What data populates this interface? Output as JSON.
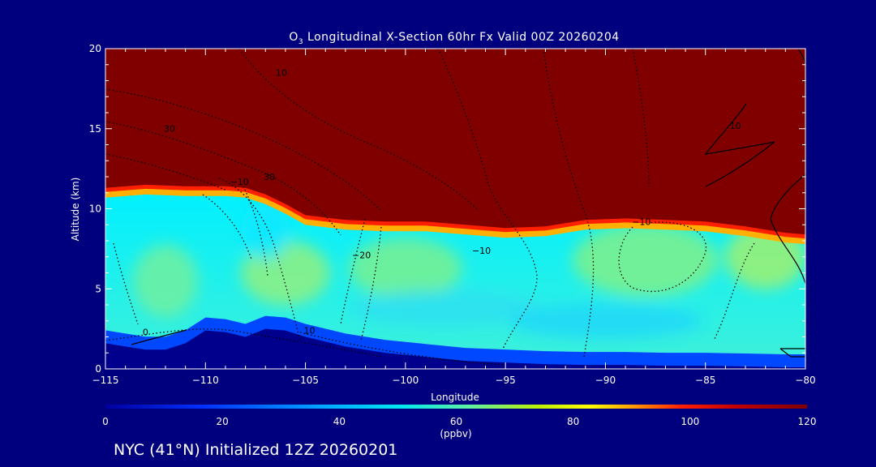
{
  "chart_data": {
    "type": "heatmap",
    "title_prefix": "O",
    "title_sub": "3",
    "title_rest": " Longitudinal X-Section 60hr  Fx Valid 00Z 20260204",
    "xlabel": "Longitude",
    "ylabel": "Altitude (km)",
    "xlim": [
      -115,
      -80
    ],
    "ylim": [
      0,
      20
    ],
    "xticks": [
      -115,
      -110,
      -105,
      -100,
      -95,
      -90,
      -85,
      -80
    ],
    "xtick_labels": [
      "−115",
      "−110",
      "−105",
      "−100",
      "−95",
      "−90",
      "−85",
      "−80"
    ],
    "yticks": [
      0,
      5,
      10,
      15,
      20
    ],
    "ytick_labels": [
      "0",
      "5",
      "10",
      "15",
      "20"
    ],
    "colorbar": {
      "range": [
        0,
        120
      ],
      "ticks": [
        0,
        20,
        40,
        60,
        80,
        100,
        120
      ],
      "tick_labels": [
        "0",
        "20",
        "40",
        "60",
        "80",
        "100",
        "120"
      ],
      "unit": "(ppbv)"
    },
    "tropopause_km": [
      [
        -115,
        11.3
      ],
      [
        -113,
        11.5
      ],
      [
        -111,
        11.4
      ],
      [
        -109,
        11.4
      ],
      [
        -108,
        11.3
      ],
      [
        -107,
        10.9
      ],
      [
        -106,
        10.3
      ],
      [
        -105,
        9.6
      ],
      [
        -103,
        9.3
      ],
      [
        -101,
        9.2
      ],
      [
        -99,
        9.2
      ],
      [
        -97,
        9.0
      ],
      [
        -95,
        8.8
      ],
      [
        -93,
        8.9
      ],
      [
        -91,
        9.3
      ],
      [
        -89,
        9.4
      ],
      [
        -87,
        9.3
      ],
      [
        -85,
        9.2
      ],
      [
        -83,
        8.9
      ],
      [
        -81,
        8.5
      ],
      [
        -80,
        8.4
      ]
    ],
    "terrain_km": [
      [
        -115,
        1.6
      ],
      [
        -114,
        1.4
      ],
      [
        -113,
        1.2
      ],
      [
        -112,
        1.2
      ],
      [
        -111,
        1.6
      ],
      [
        -110,
        2.4
      ],
      [
        -109,
        2.3
      ],
      [
        -108,
        2.0
      ],
      [
        -107,
        2.5
      ],
      [
        -106,
        2.4
      ],
      [
        -105,
        2.0
      ],
      [
        -103,
        1.4
      ],
      [
        -101,
        1.0
      ],
      [
        -99,
        0.75
      ],
      [
        -97,
        0.5
      ],
      [
        -95,
        0.4
      ],
      [
        -93,
        0.3
      ],
      [
        -91,
        0.25
      ],
      [
        -89,
        0.25
      ],
      [
        -87,
        0.2
      ],
      [
        -85,
        0.2
      ],
      [
        -83,
        0.15
      ],
      [
        -81,
        0.1
      ],
      [
        -80,
        0.1
      ]
    ],
    "contour_labels": [
      {
        "text": "10",
        "lon": -106.2,
        "alt": 18.3
      },
      {
        "text": "30",
        "lon": -111.8,
        "alt": 14.8
      },
      {
        "text": "10",
        "lon": -83.5,
        "alt": 15.0
      },
      {
        "text": "30",
        "lon": -106.8,
        "alt": 11.8
      },
      {
        "text": "−10",
        "lon": -108.3,
        "alt": 11.5
      },
      {
        "text": "−20",
        "lon": -102.2,
        "alt": 6.9
      },
      {
        "text": "−10",
        "lon": -96.2,
        "alt": 7.2
      },
      {
        "text": "−10",
        "lon": -88.2,
        "alt": 9.0
      },
      {
        "text": "0",
        "lon": -113.0,
        "alt": 2.1
      },
      {
        "text": "10",
        "lon": -104.8,
        "alt": 2.2
      }
    ]
  },
  "footer": {
    "caption": "NYC (41°N) Initialized 12Z 20260201"
  },
  "colors": {
    "background": "#00007f",
    "stratosphere": "#800000",
    "terrain": "#00008c",
    "contour": "#000000"
  }
}
